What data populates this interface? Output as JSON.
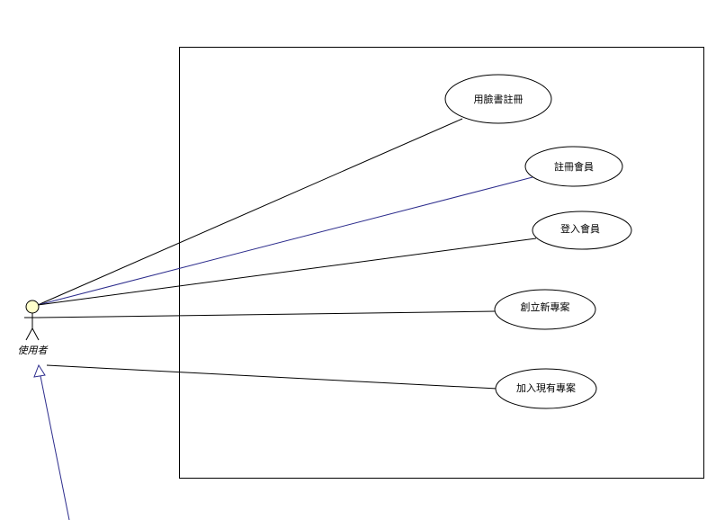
{
  "diagram": {
    "type": "uml-use-case",
    "actor": {
      "name": "使用者",
      "head_fill": "#ffffcc"
    },
    "use_cases": [
      {
        "id": "uc-facebook-register",
        "label": "用臉書註冊",
        "line_color": "#000000"
      },
      {
        "id": "uc-register-member",
        "label": "註冊會員",
        "line_color": "#2c2c8c"
      },
      {
        "id": "uc-login-member",
        "label": "登入會員",
        "line_color": "#000000"
      },
      {
        "id": "uc-create-project",
        "label": "創立新專案",
        "line_color": "#000000"
      },
      {
        "id": "uc-join-project",
        "label": "加入現有專案",
        "line_color": "#000000"
      }
    ],
    "generalization": {
      "color": "#2c2c8c"
    }
  }
}
